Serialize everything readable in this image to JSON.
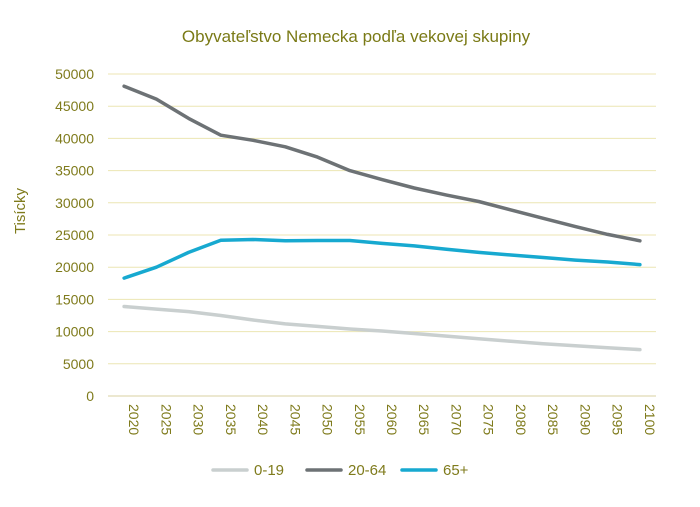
{
  "chart_data": {
    "type": "line",
    "title": "Obyvateľstvo Nemecka podľa vekovej skupiny",
    "ylabel": "Tisícky",
    "xlabel": "",
    "ylim": [
      0,
      50000
    ],
    "yticks": [
      0,
      5000,
      10000,
      15000,
      20000,
      25000,
      30000,
      35000,
      40000,
      45000,
      50000
    ],
    "grid": true,
    "legend_position": "bottom",
    "categories": [
      "2020",
      "2025",
      "2030",
      "2035",
      "2040",
      "2045",
      "2050",
      "2055",
      "2060",
      "2065",
      "2070",
      "2075",
      "2080",
      "2085",
      "2090",
      "2095",
      "2100"
    ],
    "series": [
      {
        "name": "0-19",
        "color": "#c9cfcf",
        "values": [
          13900,
          13500,
          13100,
          12500,
          11800,
          11200,
          10800,
          10400,
          10100,
          9700,
          9300,
          8900,
          8500,
          8100,
          7800,
          7500,
          7200
        ]
      },
      {
        "name": "20-64",
        "color": "#6d7275",
        "values": [
          48100,
          46100,
          43100,
          40500,
          39700,
          38700,
          37100,
          35000,
          33600,
          32300,
          31200,
          30200,
          28900,
          27600,
          26300,
          25100,
          24100
        ]
      },
      {
        "name": "65+",
        "color": "#17a9d0",
        "values": [
          18300,
          20000,
          22300,
          24200,
          24300,
          24100,
          24150,
          24150,
          23700,
          23300,
          22800,
          22300,
          21900,
          21500,
          21100,
          20800,
          20400
        ]
      }
    ]
  },
  "colors": {
    "title": "#7a7a16",
    "axis_text": "#7f7b1c",
    "grid": "#ece6b3",
    "axis_line": "#d9d2a0"
  }
}
